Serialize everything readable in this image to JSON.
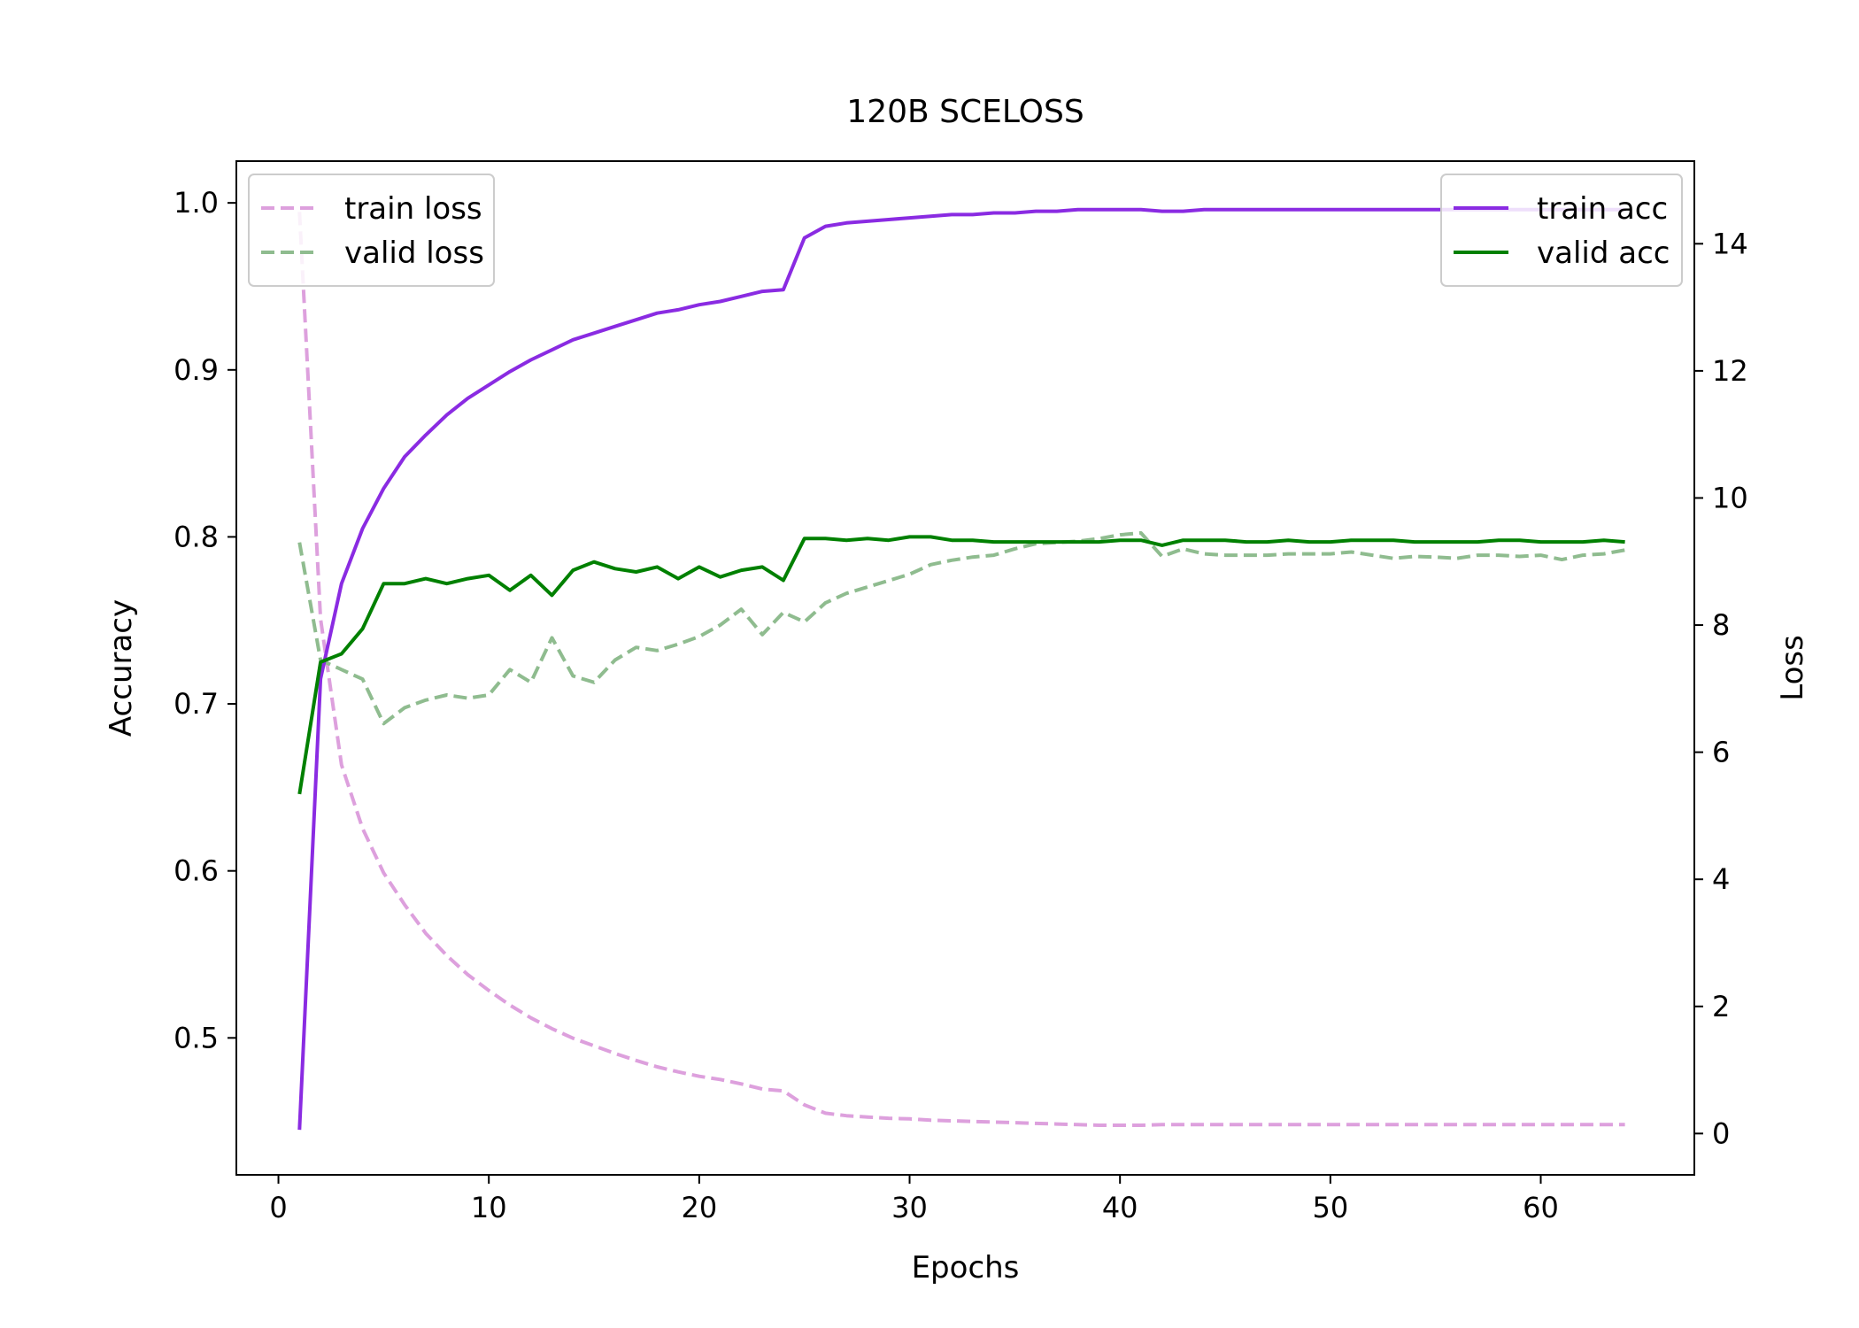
{
  "chart_data": {
    "type": "line",
    "title": "120B SCELOSS",
    "xlabel": "Epochs",
    "ylabel_left": "Accuracy",
    "ylabel_right": "Loss",
    "xlim": [
      -2,
      67.3
    ],
    "ylim_left": [
      0.418,
      1.025
    ],
    "ylim_right": [
      -0.65,
      15.3
    ],
    "xticks": [
      0,
      10,
      20,
      30,
      40,
      50,
      60
    ],
    "yticks_left": [
      0.5,
      0.6,
      0.7,
      0.8,
      0.9,
      1.0
    ],
    "ytick_labels_left": [
      "0.5",
      "0.6",
      "0.7",
      "0.8",
      "0.9",
      "1.0"
    ],
    "yticks_right": [
      0,
      2,
      4,
      6,
      8,
      10,
      12,
      14
    ],
    "grid": false,
    "legend_left_placement": "upper-left",
    "legend_right_placement": "upper-right",
    "x": [
      1,
      2,
      3,
      4,
      5,
      6,
      7,
      8,
      9,
      10,
      11,
      12,
      13,
      14,
      15,
      16,
      17,
      18,
      19,
      20,
      21,
      22,
      23,
      24,
      25,
      26,
      27,
      28,
      29,
      30,
      31,
      32,
      33,
      34,
      35,
      36,
      37,
      38,
      39,
      40,
      41,
      42,
      43,
      44,
      45,
      46,
      47,
      48,
      49,
      50,
      51,
      52,
      53,
      54,
      55,
      56,
      57,
      58,
      59,
      60,
      61,
      62,
      63,
      64
    ],
    "series": [
      {
        "name": "train loss",
        "axis": "right",
        "style": "dashed",
        "color": "#dda0dd",
        "values": [
          14.5,
          8.1,
          5.8,
          4.8,
          4.1,
          3.6,
          3.15,
          2.8,
          2.5,
          2.25,
          2.02,
          1.82,
          1.65,
          1.5,
          1.38,
          1.26,
          1.15,
          1.05,
          0.97,
          0.9,
          0.85,
          0.78,
          0.7,
          0.67,
          0.45,
          0.32,
          0.28,
          0.26,
          0.24,
          0.23,
          0.21,
          0.2,
          0.19,
          0.18,
          0.17,
          0.16,
          0.15,
          0.14,
          0.13,
          0.13,
          0.13,
          0.14,
          0.14,
          0.14,
          0.14,
          0.14,
          0.14,
          0.14,
          0.14,
          0.14,
          0.14,
          0.14,
          0.14,
          0.14,
          0.14,
          0.14,
          0.14,
          0.14,
          0.14,
          0.14,
          0.14,
          0.14,
          0.14,
          0.14
        ]
      },
      {
        "name": "valid loss",
        "axis": "right",
        "style": "dashed",
        "color": "#8fbc8f",
        "values": [
          9.3,
          7.45,
          7.3,
          7.15,
          6.45,
          6.7,
          6.82,
          6.9,
          6.85,
          6.9,
          7.3,
          7.1,
          7.8,
          7.2,
          7.1,
          7.45,
          7.65,
          7.6,
          7.7,
          7.82,
          8.0,
          8.25,
          7.85,
          8.2,
          8.05,
          8.35,
          8.5,
          8.6,
          8.7,
          8.8,
          8.95,
          9.02,
          9.07,
          9.1,
          9.2,
          9.28,
          9.3,
          9.32,
          9.36,
          9.42,
          9.45,
          9.08,
          9.2,
          9.12,
          9.1,
          9.1,
          9.1,
          9.12,
          9.12,
          9.12,
          9.15,
          9.1,
          9.05,
          9.08,
          9.07,
          9.05,
          9.1,
          9.1,
          9.08,
          9.1,
          9.03,
          9.1,
          9.12,
          9.18
        ]
      },
      {
        "name": "train acc",
        "axis": "left",
        "style": "solid",
        "color": "#8a2be2",
        "values": [
          0.445,
          0.715,
          0.772,
          0.805,
          0.829,
          0.848,
          0.861,
          0.873,
          0.883,
          0.891,
          0.899,
          0.906,
          0.912,
          0.918,
          0.922,
          0.926,
          0.93,
          0.934,
          0.936,
          0.939,
          0.941,
          0.944,
          0.947,
          0.948,
          0.979,
          0.986,
          0.988,
          0.989,
          0.99,
          0.991,
          0.992,
          0.993,
          0.993,
          0.994,
          0.994,
          0.995,
          0.995,
          0.996,
          0.996,
          0.996,
          0.996,
          0.995,
          0.995,
          0.996,
          0.996,
          0.996,
          0.996,
          0.996,
          0.996,
          0.996,
          0.996,
          0.996,
          0.996,
          0.996,
          0.996,
          0.996,
          0.996,
          0.996,
          0.996,
          0.996,
          0.996,
          0.996,
          0.996,
          0.996
        ]
      },
      {
        "name": "valid acc",
        "axis": "left",
        "style": "solid",
        "color": "#008000",
        "values": [
          0.646,
          0.725,
          0.73,
          0.745,
          0.772,
          0.772,
          0.775,
          0.772,
          0.775,
          0.777,
          0.768,
          0.777,
          0.765,
          0.78,
          0.785,
          0.781,
          0.779,
          0.782,
          0.775,
          0.782,
          0.776,
          0.78,
          0.782,
          0.774,
          0.799,
          0.799,
          0.798,
          0.799,
          0.798,
          0.8,
          0.8,
          0.798,
          0.798,
          0.797,
          0.797,
          0.797,
          0.797,
          0.797,
          0.797,
          0.798,
          0.798,
          0.795,
          0.798,
          0.798,
          0.798,
          0.797,
          0.797,
          0.798,
          0.797,
          0.797,
          0.798,
          0.798,
          0.798,
          0.797,
          0.797,
          0.797,
          0.797,
          0.798,
          0.798,
          0.797,
          0.797,
          0.797,
          0.798,
          0.797
        ]
      }
    ]
  }
}
